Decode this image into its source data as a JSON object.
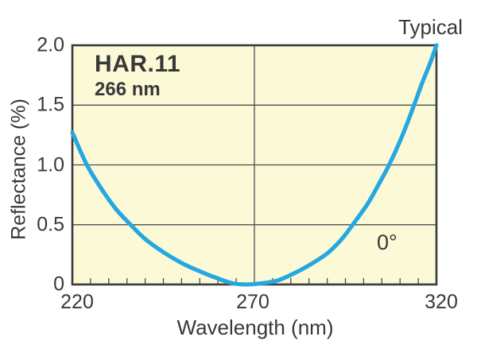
{
  "chart_data": {
    "type": "line",
    "title": "HAR.11",
    "subtitle": "266 nm",
    "corner_label": "Typical",
    "annotation": "0°",
    "xlabel": "Wavelength (nm)",
    "ylabel": "Reflectance (%)",
    "xlim": [
      220,
      320
    ],
    "ylim": [
      0,
      2.0
    ],
    "x_ticks": [
      220,
      270,
      320
    ],
    "x_tick_labels": [
      "220",
      "270",
      "320"
    ],
    "x_minor_ticks": [
      225,
      230,
      235,
      240,
      245,
      250,
      255,
      260,
      265,
      275,
      280,
      285,
      290,
      295,
      300,
      305,
      310,
      315
    ],
    "y_ticks": [
      0,
      0.5,
      1.0,
      1.5,
      2.0
    ],
    "y_tick_labels": [
      "0",
      "0.5",
      "1.0",
      "1.5",
      "2.0"
    ],
    "grid": {
      "horizontal": [
        0.5,
        1.0,
        1.5
      ],
      "vertical": [
        270
      ]
    },
    "legend": "none",
    "series": [
      {
        "name": "reflectance-vs-wavelength",
        "color": "#25A8E0",
        "x": [
          220,
          224,
          228,
          232,
          236,
          240,
          245,
          250,
          255,
          260,
          264,
          268,
          272,
          276,
          280,
          285,
          290,
          294,
          297,
          301,
          304,
          307,
          310,
          313,
          316,
          318,
          320
        ],
        "y": [
          1.27,
          1.0,
          0.8,
          0.63,
          0.5,
          0.38,
          0.27,
          0.18,
          0.11,
          0.05,
          0.01,
          0.0,
          0.01,
          0.03,
          0.08,
          0.16,
          0.26,
          0.38,
          0.5,
          0.67,
          0.83,
          1.0,
          1.2,
          1.43,
          1.68,
          1.83,
          2.0
        ]
      }
    ],
    "colors": {
      "plot_background": "#FCF9D7",
      "axis_border": "#3B3B3B",
      "gridline": "#4C4C4A",
      "text": "#383838",
      "curve": "#25A8E0"
    }
  }
}
